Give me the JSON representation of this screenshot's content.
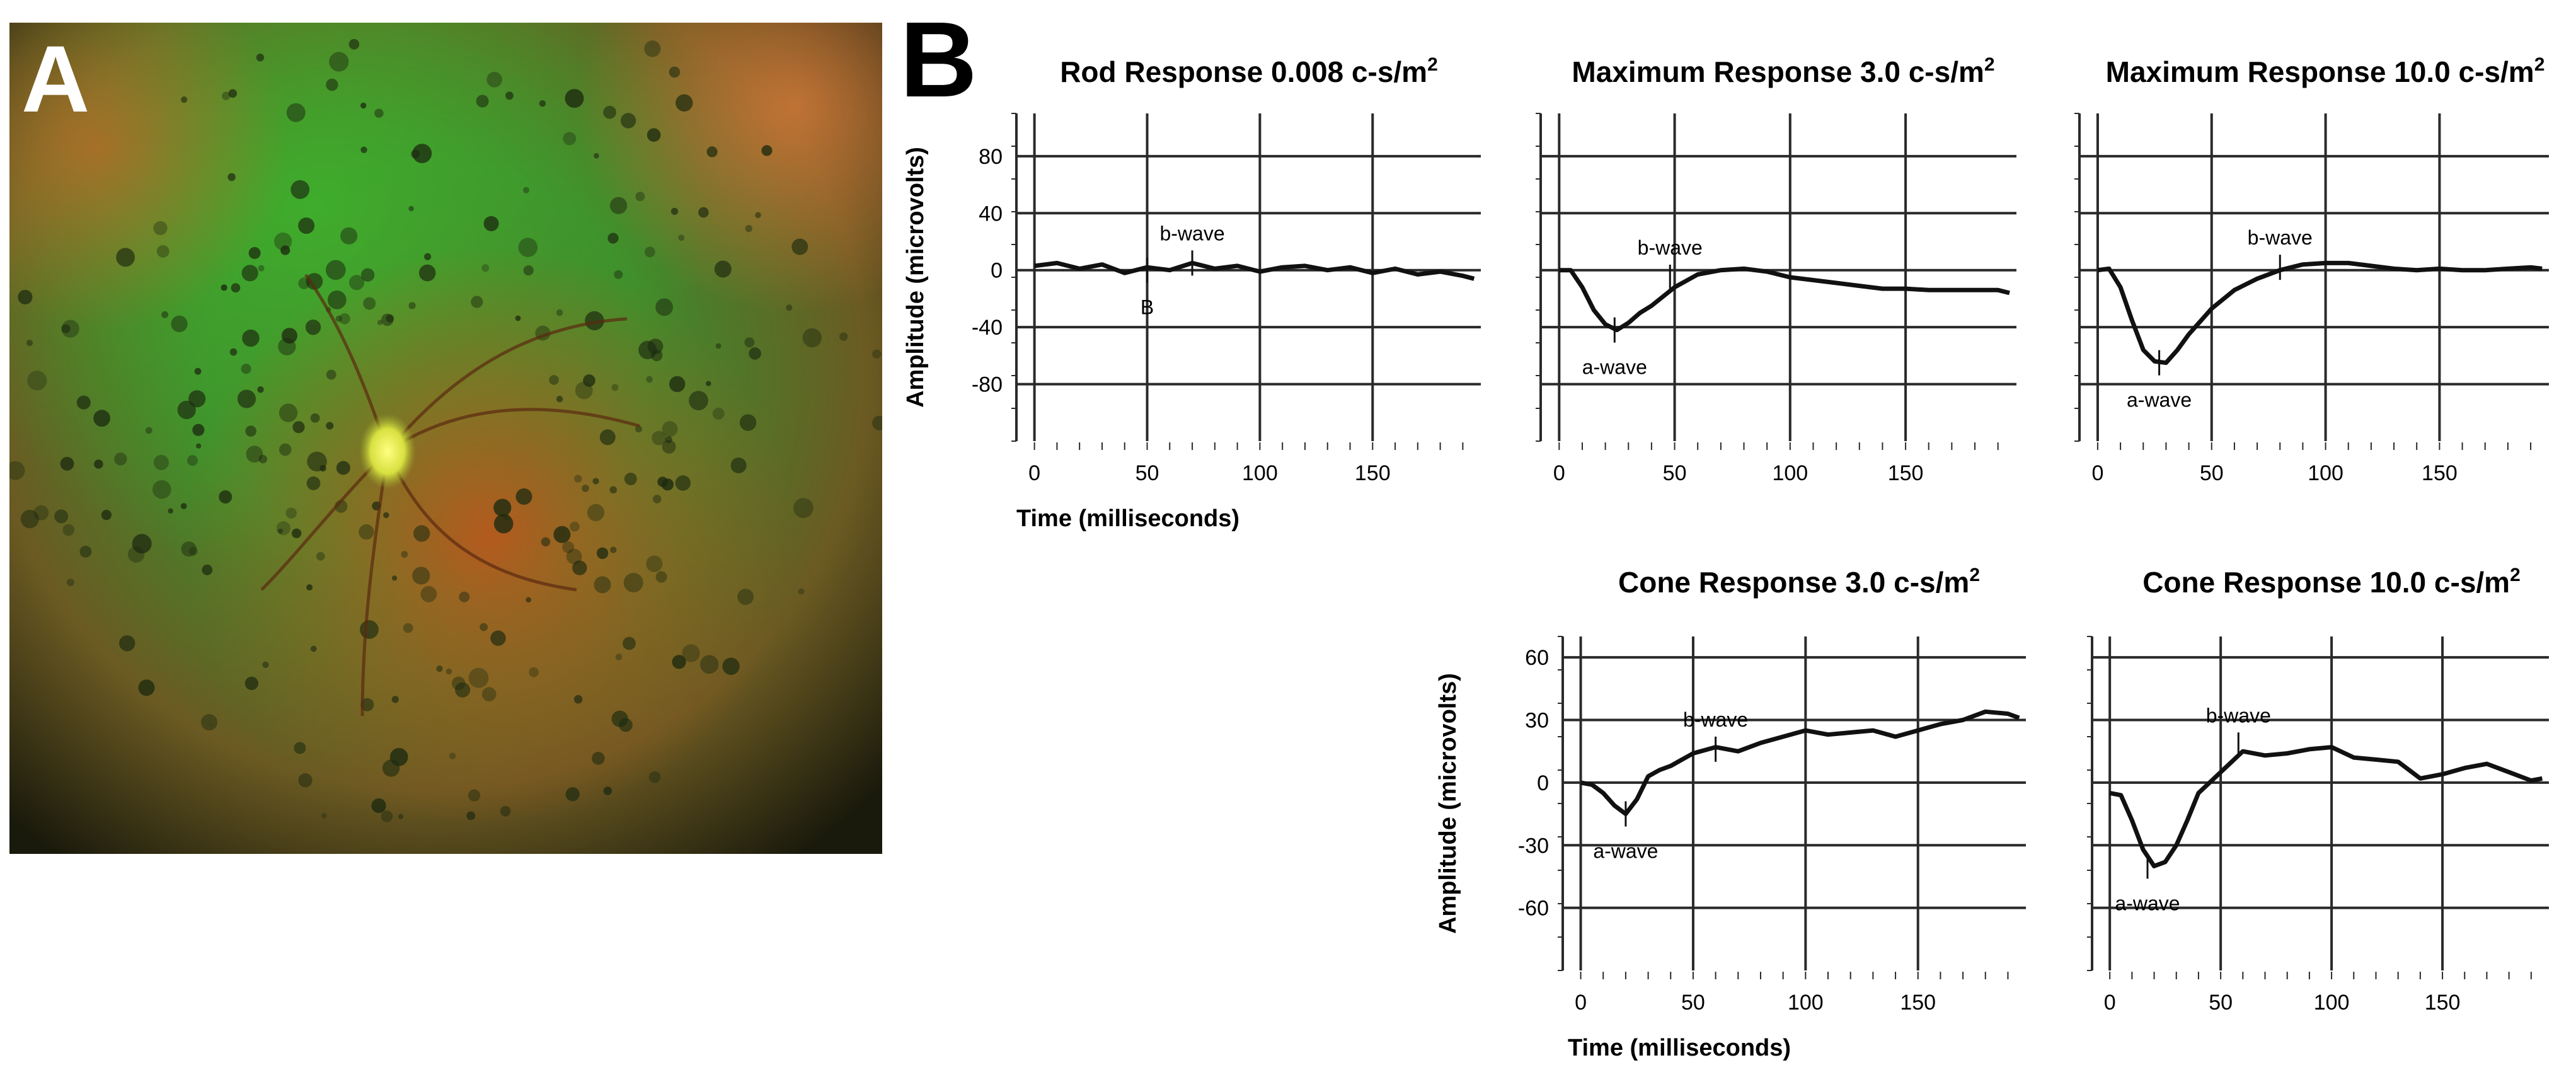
{
  "panel_a": {
    "letter": "A"
  },
  "panel_b": {
    "letter": "B"
  },
  "chart_data": [
    {
      "type": "line",
      "title": "Rod Response 0.008 c-s/m",
      "title_sup": "2",
      "ylabel": "Amplitude (microvolts)",
      "xlabel": "Time (milliseconds)",
      "xlim": [
        -8,
        198
      ],
      "ylim": [
        -120,
        110
      ],
      "xticks": [
        0,
        50,
        100,
        150
      ],
      "yticks": [
        80,
        40,
        0,
        -40,
        -80
      ],
      "grid": true,
      "x": [
        0,
        10,
        20,
        30,
        40,
        50,
        60,
        70,
        80,
        90,
        100,
        110,
        120,
        130,
        140,
        150,
        160,
        170,
        180,
        190,
        195
      ],
      "y": [
        3,
        5,
        1,
        4,
        -2,
        2,
        0,
        5,
        1,
        3,
        -1,
        2,
        3,
        0,
        2,
        -2,
        1,
        -3,
        -1,
        -4,
        -6
      ],
      "annotations": [
        {
          "text": "b-wave",
          "x": 70,
          "y": 5
        },
        {
          "text": "B",
          "x": 50,
          "y": 0
        }
      ]
    },
    {
      "type": "line",
      "title": "Maximum Response 3.0 c-s/m",
      "title_sup": "2",
      "ylabel": "",
      "xlabel": "",
      "xlim": [
        -8,
        198
      ],
      "ylim": [
        -120,
        110
      ],
      "xticks": [
        0,
        50,
        100,
        150
      ],
      "yticks": [],
      "grid": true,
      "x": [
        0,
        5,
        10,
        15,
        20,
        25,
        30,
        35,
        40,
        50,
        60,
        70,
        80,
        90,
        100,
        110,
        120,
        130,
        140,
        150,
        160,
        170,
        180,
        190,
        195
      ],
      "y": [
        0,
        0,
        -12,
        -28,
        -38,
        -42,
        -37,
        -30,
        -25,
        -12,
        -3,
        0,
        1,
        -1,
        -5,
        -7,
        -9,
        -11,
        -13,
        -13,
        -14,
        -14,
        -14,
        -14,
        -16
      ],
      "annotations": [
        {
          "text": "b-wave",
          "x": 48,
          "y": -5
        },
        {
          "text": "a-wave",
          "x": 24,
          "y": -42
        }
      ]
    },
    {
      "type": "line",
      "title": "Maximum Response 10.0 c-s/m",
      "title_sup": "2",
      "ylabel": "",
      "xlabel": "",
      "xlim": [
        -8,
        198
      ],
      "ylim": [
        -120,
        110
      ],
      "xticks": [
        0,
        50,
        100,
        150
      ],
      "yticks": [],
      "grid": true,
      "x": [
        0,
        5,
        10,
        15,
        20,
        25,
        30,
        35,
        40,
        50,
        60,
        70,
        80,
        90,
        100,
        110,
        120,
        130,
        140,
        150,
        160,
        170,
        180,
        190,
        195
      ],
      "y": [
        0,
        1,
        -12,
        -35,
        -56,
        -64,
        -65,
        -56,
        -45,
        -27,
        -14,
        -6,
        0,
        4,
        5,
        5,
        3,
        1,
        0,
        1,
        0,
        0,
        1,
        2,
        1
      ],
      "annotations": [
        {
          "text": "b-wave",
          "x": 80,
          "y": 2
        },
        {
          "text": "a-wave",
          "x": 27,
          "y": -65
        }
      ]
    },
    {
      "type": "line",
      "title": "Cone Response 3.0 c-s/m",
      "title_sup": "2",
      "ylabel": "Amplitude (microvolts)",
      "xlabel": "Time (milliseconds)",
      "xlim": [
        -8,
        198
      ],
      "ylim": [
        -90,
        70
      ],
      "xticks": [
        0,
        50,
        100,
        150
      ],
      "yticks": [
        60,
        30,
        0,
        -30,
        -60
      ],
      "grid": true,
      "x": [
        0,
        5,
        10,
        15,
        20,
        25,
        30,
        35,
        40,
        50,
        60,
        70,
        80,
        90,
        100,
        110,
        120,
        130,
        140,
        150,
        160,
        170,
        180,
        190,
        195
      ],
      "y": [
        0,
        -1,
        -5,
        -11,
        -15,
        -8,
        3,
        6,
        8,
        14,
        17,
        15,
        19,
        22,
        25,
        23,
        24,
        25,
        22,
        25,
        28,
        30,
        34,
        33,
        31
      ],
      "annotations": [
        {
          "text": "b-wave",
          "x": 60,
          "y": 16
        },
        {
          "text": "a-wave",
          "x": 20,
          "y": -15
        }
      ]
    },
    {
      "type": "line",
      "title": "Cone Response 10.0 c-s/m",
      "title_sup": "2",
      "ylabel": "",
      "xlabel": "",
      "xlim": [
        -8,
        198
      ],
      "ylim": [
        -90,
        70
      ],
      "xticks": [
        0,
        50,
        100,
        150
      ],
      "yticks": [],
      "grid": true,
      "x": [
        0,
        5,
        10,
        15,
        20,
        25,
        30,
        35,
        40,
        45,
        50,
        55,
        60,
        70,
        80,
        90,
        100,
        110,
        120,
        130,
        140,
        150,
        160,
        170,
        180,
        190,
        195
      ],
      "y": [
        -5,
        -6,
        -18,
        -32,
        -40,
        -38,
        -30,
        -18,
        -5,
        0,
        5,
        10,
        15,
        13,
        14,
        16,
        17,
        12,
        11,
        10,
        2,
        4,
        7,
        9,
        5,
        1,
        2
      ],
      "annotations": [
        {
          "text": "b-wave",
          "x": 58,
          "y": 18
        },
        {
          "text": "a-wave",
          "x": 17,
          "y": -40
        }
      ]
    }
  ],
  "colors": {
    "line": "#111111",
    "grid": "#2a2a2a",
    "text": "#000000"
  }
}
